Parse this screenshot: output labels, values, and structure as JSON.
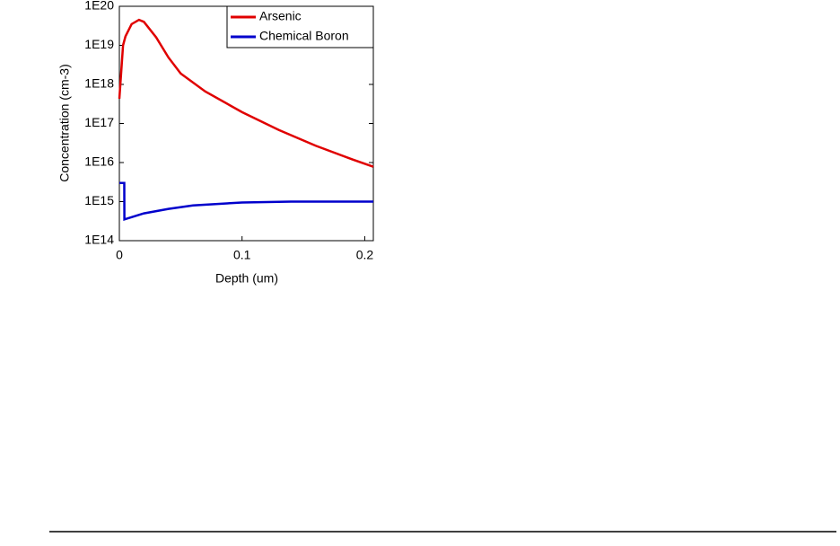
{
  "chart_data": {
    "type": "line",
    "xlabel": "Depth (um)",
    "ylabel": "Concentration (cm-3)",
    "yscale": "log",
    "legend": "upper right",
    "xlim": [
      0,
      0.207
    ],
    "xticks": [
      0,
      0.1,
      0.2
    ],
    "ylim": [
      100000000000000.0,
      1e+20
    ],
    "yticks": [
      {
        "value": 100000000000000.0,
        "label": "1E14"
      },
      {
        "value": 1000000000000000.0,
        "label": "1E15"
      },
      {
        "value": 1e+16,
        "label": "1E16"
      },
      {
        "value": 1e+17,
        "label": "1E17"
      },
      {
        "value": 1e+18,
        "label": "1E18"
      },
      {
        "value": 1e+19,
        "label": "1E19"
      },
      {
        "value": 1e+20,
        "label": "1E20"
      }
    ],
    "series": [
      {
        "name": "Arsenic",
        "color": "#e00000",
        "x": [
          0,
          0.003,
          0.005,
          0.01,
          0.016,
          0.02,
          0.03,
          0.04,
          0.05,
          0.07,
          0.1,
          0.13,
          0.16,
          0.19,
          0.207
        ],
        "values": [
          4.3e+17,
          1e+19,
          1.7e+19,
          3.5e+19,
          4.5e+19,
          4e+19,
          1.6e+19,
          4.9e+18,
          1.9e+18,
          6.6e+17,
          1.95e+17,
          6.8e+16,
          2.7e+16,
          1.2e+16,
          7800000000000000.0
        ]
      },
      {
        "name": "Chemical Boron",
        "color": "#0000cc",
        "x": [
          0,
          0.004,
          0.0041,
          0.02,
          0.04,
          0.06,
          0.1,
          0.14,
          0.207
        ],
        "values": [
          3000000000000000.0,
          3000000000000000.0,
          350000000000000.0,
          500000000000000.0,
          650000000000000.0,
          800000000000000.0,
          950000000000000.0,
          1000000000000000.0,
          1000000000000000.0
        ]
      }
    ]
  }
}
